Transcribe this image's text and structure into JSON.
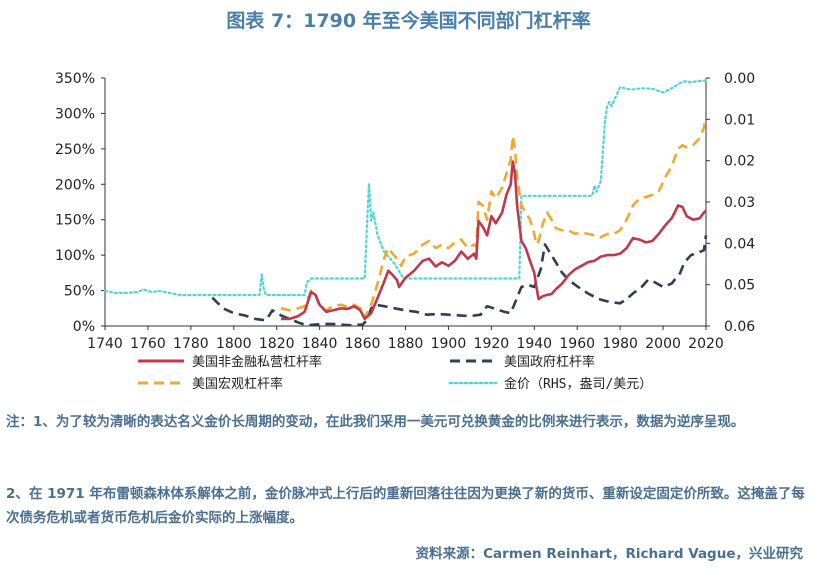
{
  "title": "图表 7：1790 年至今美国不同部门杠杆率",
  "notes": {
    "note1": "注：1、为了较为清晰的表达名义金价长周期的变动，在此我们采用一美元可兑换黄金的比例来进行表示，数据为逆序呈现。",
    "note2": "2、在 1971 年布雷顿森林体系解体之前，金价脉冲式上行后的重新回落往往因为更换了新的货币、重新设定固定价所致。这掩盖了每次债务危机或者货币危机后金价实际的上涨幅度。"
  },
  "source": "资料来源：Carmen Reinhart，Richard Vague，兴业研究",
  "colors": {
    "private": "#c0394b",
    "government": "#2d3e55",
    "macro": "#f0a830",
    "gold": "#4fd4d8"
  },
  "chart_data": {
    "type": "line",
    "xlim": [
      1740,
      2020
    ],
    "ylim_left": [
      0,
      350
    ],
    "ylim_right_inverted": [
      0.0,
      0.06
    ],
    "x_ticks": [
      "1740",
      "1760",
      "1780",
      "1800",
      "1820",
      "1840",
      "1860",
      "1880",
      "1900",
      "1920",
      "1940",
      "1960",
      "1980",
      "2000",
      "2020"
    ],
    "y_left_ticks": [
      "0%",
      "50%",
      "100%",
      "150%",
      "200%",
      "250%",
      "300%",
      "350%"
    ],
    "y_right_ticks": [
      "0.00",
      "0.01",
      "0.02",
      "0.03",
      "0.04",
      "0.05",
      "0.06"
    ],
    "series": [
      {
        "name": "美国非金融私营杠杆率",
        "axis": "left",
        "style": "solid",
        "points": [
          [
            1822,
            10
          ],
          [
            1826,
            10
          ],
          [
            1830,
            14
          ],
          [
            1833,
            20
          ],
          [
            1836,
            48
          ],
          [
            1838,
            44
          ],
          [
            1840,
            30
          ],
          [
            1843,
            20
          ],
          [
            1846,
            22
          ],
          [
            1850,
            25
          ],
          [
            1853,
            24
          ],
          [
            1856,
            28
          ],
          [
            1859,
            22
          ],
          [
            1861,
            10
          ],
          [
            1864,
            18
          ],
          [
            1867,
            40
          ],
          [
            1870,
            62
          ],
          [
            1872,
            78
          ],
          [
            1874,
            72
          ],
          [
            1876,
            65
          ],
          [
            1877,
            55
          ],
          [
            1880,
            68
          ],
          [
            1884,
            78
          ],
          [
            1888,
            92
          ],
          [
            1891,
            95
          ],
          [
            1894,
            84
          ],
          [
            1897,
            90
          ],
          [
            1900,
            85
          ],
          [
            1903,
            92
          ],
          [
            1906,
            105
          ],
          [
            1909,
            95
          ],
          [
            1912,
            102
          ],
          [
            1913,
            95
          ],
          [
            1914,
            148
          ],
          [
            1916,
            140
          ],
          [
            1918,
            128
          ],
          [
            1920,
            155
          ],
          [
            1922,
            145
          ],
          [
            1925,
            160
          ],
          [
            1927,
            185
          ],
          [
            1929,
            200
          ],
          [
            1930,
            232
          ],
          [
            1931,
            215
          ],
          [
            1932,
            170
          ],
          [
            1934,
            120
          ],
          [
            1936,
            110
          ],
          [
            1938,
            92
          ],
          [
            1940,
            75
          ],
          [
            1941,
            55
          ],
          [
            1942,
            38
          ],
          [
            1944,
            42
          ],
          [
            1946,
            44
          ],
          [
            1948,
            45
          ],
          [
            1950,
            52
          ],
          [
            1953,
            60
          ],
          [
            1956,
            72
          ],
          [
            1959,
            80
          ],
          [
            1962,
            85
          ],
          [
            1965,
            90
          ],
          [
            1968,
            92
          ],
          [
            1971,
            98
          ],
          [
            1974,
            100
          ],
          [
            1977,
            100
          ],
          [
            1980,
            102
          ],
          [
            1983,
            110
          ],
          [
            1986,
            124
          ],
          [
            1989,
            122
          ],
          [
            1992,
            118
          ],
          [
            1995,
            120
          ],
          [
            1998,
            130
          ],
          [
            2001,
            142
          ],
          [
            2004,
            152
          ],
          [
            2007,
            170
          ],
          [
            2009,
            168
          ],
          [
            2011,
            155
          ],
          [
            2014,
            150
          ],
          [
            2017,
            152
          ],
          [
            2019,
            160
          ],
          [
            2020,
            163
          ]
        ]
      },
      {
        "name": "美国政府杠杆率",
        "axis": "left",
        "style": "dashed",
        "points": [
          [
            1790,
            40
          ],
          [
            1795,
            25
          ],
          [
            1800,
            18
          ],
          [
            1805,
            15
          ],
          [
            1810,
            10
          ],
          [
            1815,
            8
          ],
          [
            1818,
            22
          ],
          [
            1822,
            15
          ],
          [
            1826,
            10
          ],
          [
            1830,
            5
          ],
          [
            1834,
            1
          ],
          [
            1838,
            2
          ],
          [
            1842,
            3
          ],
          [
            1846,
            3
          ],
          [
            1850,
            2
          ],
          [
            1855,
            1
          ],
          [
            1860,
            2
          ],
          [
            1862,
            8
          ],
          [
            1864,
            25
          ],
          [
            1866,
            30
          ],
          [
            1870,
            28
          ],
          [
            1875,
            25
          ],
          [
            1880,
            22
          ],
          [
            1885,
            20
          ],
          [
            1890,
            16
          ],
          [
            1895,
            17
          ],
          [
            1900,
            16
          ],
          [
            1905,
            15
          ],
          [
            1910,
            14
          ],
          [
            1915,
            16
          ],
          [
            1918,
            28
          ],
          [
            1922,
            24
          ],
          [
            1926,
            20
          ],
          [
            1929,
            18
          ],
          [
            1932,
            40
          ],
          [
            1934,
            55
          ],
          [
            1937,
            58
          ],
          [
            1940,
            55
          ],
          [
            1943,
            80
          ],
          [
            1945,
            115
          ],
          [
            1947,
            105
          ],
          [
            1950,
            90
          ],
          [
            1953,
            75
          ],
          [
            1956,
            65
          ],
          [
            1960,
            56
          ],
          [
            1965,
            46
          ],
          [
            1970,
            38
          ],
          [
            1975,
            34
          ],
          [
            1980,
            32
          ],
          [
            1983,
            38
          ],
          [
            1986,
            46
          ],
          [
            1990,
            55
          ],
          [
            1993,
            65
          ],
          [
            1996,
            62
          ],
          [
            2000,
            55
          ],
          [
            2004,
            60
          ],
          [
            2008,
            75
          ],
          [
            2010,
            90
          ],
          [
            2013,
            100
          ],
          [
            2016,
            103
          ],
          [
            2019,
            107
          ],
          [
            2020,
            128
          ]
        ]
      },
      {
        "name": "美国宏观杠杆率",
        "axis": "left",
        "style": "dashed",
        "points": [
          [
            1822,
            25
          ],
          [
            1826,
            22
          ],
          [
            1830,
            25
          ],
          [
            1833,
            28
          ],
          [
            1836,
            50
          ],
          [
            1838,
            45
          ],
          [
            1840,
            28
          ],
          [
            1843,
            22
          ],
          [
            1846,
            28
          ],
          [
            1850,
            30
          ],
          [
            1853,
            27
          ],
          [
            1856,
            30
          ],
          [
            1859,
            25
          ],
          [
            1861,
            12
          ],
          [
            1864,
            30
          ],
          [
            1867,
            60
          ],
          [
            1870,
            95
          ],
          [
            1872,
            110
          ],
          [
            1874,
            102
          ],
          [
            1876,
            95
          ],
          [
            1878,
            85
          ],
          [
            1880,
            98
          ],
          [
            1884,
            102
          ],
          [
            1888,
            115
          ],
          [
            1891,
            120
          ],
          [
            1894,
            110
          ],
          [
            1897,
            115
          ],
          [
            1900,
            110
          ],
          [
            1903,
            118
          ],
          [
            1906,
            122
          ],
          [
            1909,
            110
          ],
          [
            1912,
            115
          ],
          [
            1913,
            112
          ],
          [
            1914,
            175
          ],
          [
            1916,
            170
          ],
          [
            1918,
            150
          ],
          [
            1920,
            190
          ],
          [
            1922,
            180
          ],
          [
            1925,
            195
          ],
          [
            1927,
            215
          ],
          [
            1929,
            235
          ],
          [
            1930,
            268
          ],
          [
            1931,
            250
          ],
          [
            1932,
            210
          ],
          [
            1934,
            170
          ],
          [
            1936,
            160
          ],
          [
            1938,
            150
          ],
          [
            1940,
            130
          ],
          [
            1941,
            115
          ],
          [
            1942,
            120
          ],
          [
            1944,
            145
          ],
          [
            1946,
            160
          ],
          [
            1948,
            150
          ],
          [
            1950,
            138
          ],
          [
            1953,
            135
          ],
          [
            1956,
            135
          ],
          [
            1959,
            130
          ],
          [
            1962,
            132
          ],
          [
            1965,
            130
          ],
          [
            1968,
            128
          ],
          [
            1971,
            125
          ],
          [
            1974,
            130
          ],
          [
            1977,
            130
          ],
          [
            1980,
            135
          ],
          [
            1983,
            150
          ],
          [
            1986,
            170
          ],
          [
            1989,
            180
          ],
          [
            1992,
            182
          ],
          [
            1995,
            185
          ],
          [
            1998,
            190
          ],
          [
            2001,
            210
          ],
          [
            2004,
            225
          ],
          [
            2007,
            250
          ],
          [
            2009,
            255
          ],
          [
            2011,
            252
          ],
          [
            2014,
            255
          ],
          [
            2017,
            265
          ],
          [
            2019,
            280
          ],
          [
            2020,
            295
          ]
        ]
      },
      {
        "name": "金价（RHS，盎司/美元）",
        "axis": "right",
        "style": "dotted",
        "points": [
          [
            1740,
            0.0515
          ],
          [
            1745,
            0.052
          ],
          [
            1750,
            0.052
          ],
          [
            1755,
            0.0518
          ],
          [
            1758,
            0.0512
          ],
          [
            1762,
            0.0518
          ],
          [
            1765,
            0.0515
          ],
          [
            1770,
            0.052
          ],
          [
            1775,
            0.0525
          ],
          [
            1780,
            0.0525
          ],
          [
            1785,
            0.0525
          ],
          [
            1790,
            0.0525
          ],
          [
            1800,
            0.0525
          ],
          [
            1810,
            0.0525
          ],
          [
            1812,
            0.0525
          ],
          [
            1813,
            0.0475
          ],
          [
            1814,
            0.051
          ],
          [
            1815,
            0.0525
          ],
          [
            1820,
            0.0525
          ],
          [
            1830,
            0.0525
          ],
          [
            1833,
            0.0525
          ],
          [
            1834,
            0.0495
          ],
          [
            1836,
            0.0485
          ],
          [
            1840,
            0.0485
          ],
          [
            1850,
            0.0485
          ],
          [
            1860,
            0.0485
          ],
          [
            1861,
            0.0485
          ],
          [
            1862,
            0.036
          ],
          [
            1863,
            0.0255
          ],
          [
            1864,
            0.0345
          ],
          [
            1865,
            0.0325
          ],
          [
            1867,
            0.038
          ],
          [
            1870,
            0.042
          ],
          [
            1875,
            0.045
          ],
          [
            1879,
            0.0485
          ],
          [
            1890,
            0.0485
          ],
          [
            1900,
            0.0485
          ],
          [
            1910,
            0.0485
          ],
          [
            1920,
            0.0485
          ],
          [
            1933,
            0.0485
          ],
          [
            1934,
            0.0285
          ],
          [
            1940,
            0.0285
          ],
          [
            1950,
            0.0285
          ],
          [
            1960,
            0.0285
          ],
          [
            1967,
            0.0285
          ],
          [
            1968,
            0.026
          ],
          [
            1969,
            0.0275
          ],
          [
            1971,
            0.025
          ],
          [
            1973,
            0.01
          ],
          [
            1974,
            0.0068
          ],
          [
            1975,
            0.0058
          ],
          [
            1976,
            0.0068
          ],
          [
            1978,
            0.0045
          ],
          [
            1980,
            0.0022
          ],
          [
            1985,
            0.0028
          ],
          [
            1990,
            0.0025
          ],
          [
            1995,
            0.0026
          ],
          [
            2000,
            0.0035
          ],
          [
            2005,
            0.0022
          ],
          [
            2008,
            0.0012
          ],
          [
            2010,
            0.0008
          ],
          [
            2013,
            0.001
          ],
          [
            2016,
            0.0008
          ],
          [
            2020,
            0.0006
          ]
        ]
      }
    ],
    "legend": [
      {
        "label": "美国非金融私营杠杆率",
        "series": 0
      },
      {
        "label": "美国政府杠杆率",
        "series": 1
      },
      {
        "label": "美国宏观杠杆率",
        "series": 2
      },
      {
        "label": "金价（RHS，盎司/美元）",
        "series": 3
      }
    ]
  }
}
